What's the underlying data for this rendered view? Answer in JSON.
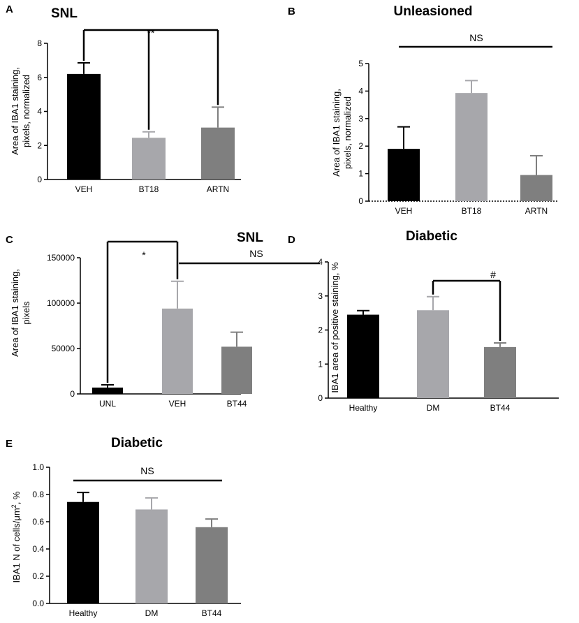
{
  "figure": {
    "colors": {
      "black": "#000000",
      "light_grey": "#a7a7ab",
      "dark_grey": "#7f7f7f"
    }
  },
  "chart_data": [
    {
      "panel": "A",
      "type": "bar",
      "title": "SNL",
      "ylabel": "Area of IBA1 staining,\npixels, normalized",
      "categories": [
        "VEH",
        "BT18",
        "ARTN"
      ],
      "values": [
        6.2,
        2.45,
        3.05
      ],
      "errors": [
        0.65,
        0.35,
        1.2
      ],
      "ylim": [
        0,
        8
      ],
      "yticks": [
        0,
        2,
        4,
        6,
        8
      ],
      "ytick_labels": [
        "0",
        "2",
        "4",
        "6",
        "8"
      ],
      "annotations": [
        {
          "type": "bracket",
          "from": 0,
          "to": [
            1,
            2
          ],
          "label": "**"
        }
      ]
    },
    {
      "panel": "B",
      "type": "bar",
      "title": "Unleasioned",
      "ylabel": "Area of IBA1 staining,\npixels, normalized",
      "categories": [
        "VEH",
        "BT18",
        "ARTN"
      ],
      "values": [
        1.9,
        3.93,
        0.95
      ],
      "errors": [
        0.8,
        0.45,
        0.7
      ],
      "ylim": [
        0,
        5
      ],
      "yticks": [
        0,
        1,
        2,
        3,
        4,
        5
      ],
      "ytick_labels": [
        "0",
        "1",
        "2",
        "3",
        "4",
        "5"
      ],
      "annotations": [
        {
          "type": "line",
          "from": 0,
          "to": 2,
          "label": "NS"
        }
      ]
    },
    {
      "panel": "C",
      "type": "bar",
      "title": "SNL",
      "ylabel": "Area of IBA1 staining,\npixels",
      "categories": [
        "UNL",
        "VEH",
        "BT44"
      ],
      "values": [
        7000,
        94000,
        52000
      ],
      "errors": [
        3000,
        30000,
        16000
      ],
      "ylim": [
        0,
        150000
      ],
      "yticks": [
        0,
        50000,
        100000,
        150000
      ],
      "ytick_labels": [
        "0",
        "50000",
        "100000",
        "150000"
      ],
      "annotations": [
        {
          "type": "bracket",
          "from": 0,
          "to": 1,
          "label": "*"
        },
        {
          "type": "line",
          "from": 1,
          "to": 2,
          "label": "NS"
        }
      ]
    },
    {
      "panel": "D",
      "type": "bar",
      "title": "Diabetic",
      "ylabel": "IBA1 area of positive staining, %",
      "categories": [
        "Healthy",
        "DM",
        "BT44"
      ],
      "values": [
        2.45,
        2.58,
        1.5
      ],
      "errors": [
        0.12,
        0.4,
        0.12
      ],
      "ylim": [
        0,
        4
      ],
      "yticks": [
        0,
        1,
        2,
        3,
        4
      ],
      "ytick_labels": [
        "0",
        "1",
        "2",
        "3",
        "4"
      ],
      "annotations": [
        {
          "type": "bracket",
          "from": 1,
          "to": 2,
          "label": "#"
        }
      ]
    },
    {
      "panel": "E",
      "type": "bar",
      "title": "Diabetic",
      "ylabel_pre": "IBA1 N of cells/μm",
      "ylabel_sup": "2",
      "ylabel_post": ", %",
      "categories": [
        "Healthy",
        "DM",
        "BT44"
      ],
      "values": [
        0.745,
        0.69,
        0.56
      ],
      "errors": [
        0.07,
        0.085,
        0.06
      ],
      "ylim": [
        0,
        1.0
      ],
      "yticks": [
        0,
        0.2,
        0.4,
        0.6,
        0.8,
        1.0
      ],
      "ytick_labels": [
        "0.0",
        "0.2",
        "0.4",
        "0.6",
        "0.8",
        "1.0"
      ],
      "annotations": [
        {
          "type": "line",
          "from": 0,
          "to": 2,
          "label": "NS"
        }
      ]
    }
  ]
}
